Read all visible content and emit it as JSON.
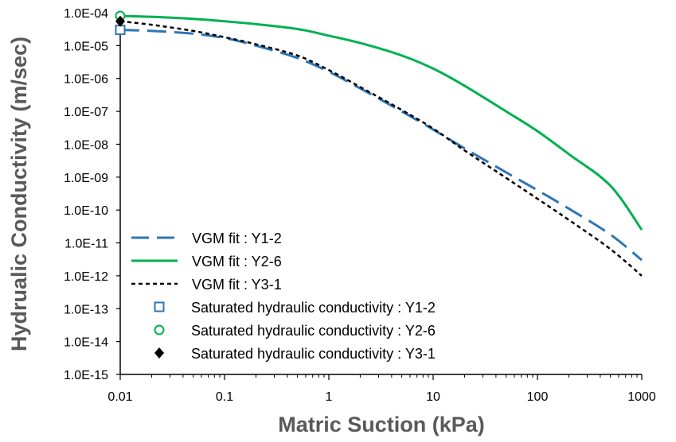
{
  "chart_data": {
    "type": "line",
    "xlabel": "Matric Suction (kPa)",
    "ylabel": "Hydrualic Conductivity (m/sec)",
    "x_scale": "log",
    "y_scale": "log",
    "xlim": [
      0.01,
      1000
    ],
    "ylim": [
      1e-15,
      0.0001
    ],
    "x_ticks": [
      0.01,
      0.1,
      1,
      10,
      100,
      1000
    ],
    "x_tick_labels": [
      "0.01",
      "0.1",
      "1",
      "10",
      "100",
      "1000"
    ],
    "y_ticks": [
      1e-15,
      1e-14,
      1e-13,
      1e-12,
      1e-11,
      1e-10,
      1e-09,
      1e-08,
      1e-07,
      1e-06,
      1e-05,
      0.0001
    ],
    "y_tick_labels": [
      "1.0E-15",
      "1.0E-14",
      "1.0E-13",
      "1.0E-12",
      "1.0E-11",
      "1.0E-10",
      "1.0E-09",
      "1.0E-08",
      "1.0E-07",
      "1.0E-06",
      "1.0E-05",
      "1.0E-04"
    ],
    "grid": false,
    "legend_position": "bottom-left inside plot",
    "series": [
      {
        "name": "VGM fit : Y1-2",
        "kind": "line",
        "style": "long-dash",
        "color": "#2E75B6",
        "x": [
          0.01,
          0.02,
          0.05,
          0.1,
          0.2,
          0.5,
          1,
          2,
          5,
          10,
          20,
          50,
          100,
          200,
          500,
          1000
        ],
        "y": [
          3e-05,
          2.8e-05,
          2.3e-05,
          1.7e-05,
          1e-05,
          4.2e-06,
          1.6e-06,
          5e-07,
          1e-07,
          2.8e-08,
          7.5e-09,
          1.4e-09,
          4e-10,
          1.1e-10,
          1.8e-11,
          3e-12
        ]
      },
      {
        "name": "VGM fit : Y2-6",
        "kind": "line",
        "style": "solid",
        "color": "#00B050",
        "x": [
          0.01,
          0.02,
          0.05,
          0.1,
          0.2,
          0.5,
          1,
          2,
          5,
          10,
          20,
          50,
          100,
          200,
          500,
          1000
        ],
        "y": [
          8e-05,
          7.5e-05,
          6.5e-05,
          5.5e-05,
          4.5e-05,
          3.2e-05,
          2e-05,
          1.2e-05,
          5e-06,
          2e-06,
          6e-07,
          1e-07,
          2.5e-08,
          5e-09,
          5.5e-10,
          2.5e-11
        ]
      },
      {
        "name": "VGM fit : Y3-1",
        "kind": "line",
        "style": "short-dash",
        "color": "#000000",
        "x": [
          0.01,
          0.02,
          0.05,
          0.1,
          0.2,
          0.5,
          1,
          2,
          5,
          10,
          20,
          50,
          100,
          200,
          500,
          1000
        ],
        "y": [
          5.5e-05,
          4.3e-05,
          2.8e-05,
          1.8e-05,
          1.1e-05,
          5e-06,
          1.8e-06,
          5.5e-07,
          1.1e-07,
          3e-08,
          6.5e-09,
          9.5e-10,
          2.2e-10,
          5e-11,
          6.5e-12,
          1e-12
        ]
      },
      {
        "name": "Saturated hydraulic conductivity : Y1-2",
        "kind": "marker",
        "marker": "open-square",
        "color": "#2E75B6",
        "x": [
          0.01
        ],
        "y": [
          3e-05
        ]
      },
      {
        "name": "Saturated hydraulic conductivity : Y2-6",
        "kind": "marker",
        "marker": "open-circle",
        "color": "#00B050",
        "x": [
          0.01
        ],
        "y": [
          8e-05
        ]
      },
      {
        "name": "Saturated hydraulic conductivity : Y3-1",
        "kind": "marker",
        "marker": "filled-diamond",
        "color": "#000000",
        "x": [
          0.01
        ],
        "y": [
          5.5e-05
        ]
      }
    ]
  }
}
